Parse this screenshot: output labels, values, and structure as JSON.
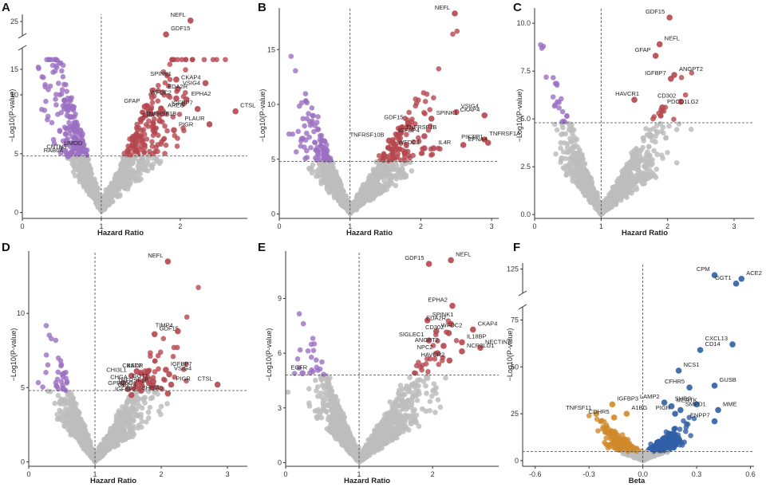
{
  "colors": {
    "background": "#bdbdbd",
    "significant_hr": "#b5474f",
    "protective": "#9b6fc2",
    "positive_beta": "#2f5fa6",
    "negative_beta": "#d08a2a"
  },
  "chart_data": [
    {
      "panel": "A",
      "type": "scatter",
      "xlabel": "Hazard Ratio",
      "ylabel": "−Log10(P-value)",
      "xlim": [
        0,
        2.85
      ],
      "ylim": [
        -0.5,
        26.5
      ],
      "x_ticks": [
        0,
        1,
        2
      ],
      "y_ticks": [
        0,
        5,
        10,
        15,
        25
      ],
      "y_axis_break": [
        14,
        22
      ],
      "ref_x": 1,
      "ref_y": 4.8,
      "labeled_points": [
        {
          "label": "NEFL",
          "x": 2.13,
          "y": 25.2,
          "group": "significant_hr"
        },
        {
          "label": "GDF15",
          "x": 1.82,
          "y": 22.3,
          "group": "significant_hr"
        },
        {
          "label": "SPINK1",
          "x": 1.95,
          "y": 11.3,
          "group": "significant_hr"
        },
        {
          "label": "VSIG4",
          "x": 1.97,
          "y": 10.5,
          "group": "significant_hr"
        },
        {
          "label": "CKAP4",
          "x": 2.32,
          "y": 11.0,
          "group": "significant_hr"
        },
        {
          "label": "EDA2R",
          "x": 1.78,
          "y": 10.2,
          "group": "significant_hr"
        },
        {
          "label": "WFDC2",
          "x": 1.95,
          "y": 9.7,
          "group": "significant_hr"
        },
        {
          "label": "EPHA2",
          "x": 2.08,
          "y": 9.6,
          "group": "significant_hr"
        },
        {
          "label": "GFAP",
          "x": 1.55,
          "y": 9.0,
          "group": "significant_hr"
        },
        {
          "label": "AREG",
          "x": 1.78,
          "y": 8.6,
          "group": "significant_hr"
        },
        {
          "label": "IGFBP7",
          "x": 2.22,
          "y": 8.8,
          "group": "significant_hr"
        },
        {
          "label": "TNFRSF1B",
          "x": 1.5,
          "y": 7.9,
          "group": "significant_hr"
        },
        {
          "label": "IL4R",
          "x": 1.74,
          "y": 7.8,
          "group": "significant_hr"
        },
        {
          "label": "PIGR",
          "x": 1.92,
          "y": 7.0,
          "group": "significant_hr"
        },
        {
          "label": "PLAUR",
          "x": 2.37,
          "y": 7.5,
          "group": "significant_hr"
        },
        {
          "label": "CTSL",
          "x": 2.7,
          "y": 8.6,
          "group": "significant_hr"
        },
        {
          "label": "RAB6A",
          "x": 0.58,
          "y": 4.8,
          "group": "protective"
        },
        {
          "label": "UMOD",
          "x": 0.7,
          "y": 5.4,
          "group": "protective"
        },
        {
          "label": "CNTN5",
          "x": 0.62,
          "y": 5.1,
          "group": "protective"
        }
      ]
    },
    {
      "panel": "B",
      "type": "scatter",
      "xlabel": "Hazard Ratio",
      "ylabel": "−Log10(P-value)",
      "xlim": [
        0,
        3.1
      ],
      "ylim": [
        -0.4,
        18.8
      ],
      "x_ticks": [
        0,
        1,
        2,
        3
      ],
      "y_ticks": [
        0,
        5,
        10,
        15
      ],
      "ref_x": 1,
      "ref_y": 4.8,
      "labeled_points": [
        {
          "label": "NEFL",
          "x": 2.48,
          "y": 18.3,
          "group": "significant_hr"
        },
        {
          "label": "VSIG4",
          "x": 2.5,
          "y": 9.3,
          "group": "significant_hr"
        },
        {
          "label": "CKAP4",
          "x": 2.9,
          "y": 9.0,
          "group": "significant_hr"
        },
        {
          "label": "SPINK1",
          "x": 2.15,
          "y": 8.7,
          "group": "significant_hr"
        },
        {
          "label": "GDF15",
          "x": 1.82,
          "y": 8.3,
          "group": "significant_hr"
        },
        {
          "label": "TNFRSF1B",
          "x": 1.72,
          "y": 7.4,
          "group": "significant_hr"
        },
        {
          "label": "IGFBP4",
          "x": 2.05,
          "y": 7.1,
          "group": "significant_hr"
        },
        {
          "label": "TNFRSF1A",
          "x": 2.9,
          "y": 6.8,
          "group": "significant_hr"
        },
        {
          "label": "TNFRSF10B",
          "x": 1.55,
          "y": 6.7,
          "group": "significant_hr"
        },
        {
          "label": "EFNA4",
          "x": 2.6,
          "y": 6.3,
          "group": "significant_hr"
        },
        {
          "label": "WFDC2",
          "x": 2.05,
          "y": 6.0,
          "group": "significant_hr"
        },
        {
          "label": "IL4R",
          "x": 2.18,
          "y": 6.0,
          "group": "significant_hr"
        },
        {
          "label": "PIK3IP1",
          "x": 2.95,
          "y": 6.5,
          "group": "significant_hr"
        }
      ]
    },
    {
      "panel": "C",
      "type": "scatter",
      "xlabel": "Hazard Ratio",
      "ylabel": "−Log10(P-value)",
      "xlim": [
        0,
        3.3
      ],
      "ylim": [
        -0.2,
        10.8
      ],
      "x_ticks": [
        0,
        1,
        2,
        3
      ],
      "y_ticks": [
        0.0,
        2.5,
        5.0,
        7.5,
        10.0
      ],
      "ref_x": 1,
      "ref_y": 4.8,
      "labeled_points": [
        {
          "label": "GDF15",
          "x": 2.03,
          "y": 10.3,
          "group": "significant_hr"
        },
        {
          "label": "NEFL",
          "x": 1.88,
          "y": 8.9,
          "group": "significant_hr"
        },
        {
          "label": "GFAP",
          "x": 1.82,
          "y": 8.3,
          "group": "significant_hr"
        },
        {
          "label": "ANGPT2",
          "x": 2.1,
          "y": 7.3,
          "group": "significant_hr"
        },
        {
          "label": "IGFBP7",
          "x": 2.05,
          "y": 7.1,
          "group": "significant_hr"
        },
        {
          "label": "HAVCR1",
          "x": 1.5,
          "y": 6.0,
          "group": "significant_hr"
        },
        {
          "label": "CD302",
          "x": 2.2,
          "y": 5.9,
          "group": "significant_hr"
        },
        {
          "label": "PDCD1LG2",
          "x": 1.92,
          "y": 5.6,
          "group": "significant_hr"
        }
      ]
    },
    {
      "panel": "D",
      "type": "scatter",
      "xlabel": "Hazard Ratio",
      "ylabel": "−Log10(P-value)",
      "xlim": [
        0,
        3.3
      ],
      "ylim": [
        -0.3,
        14.2
      ],
      "x_ticks": [
        0,
        1,
        2,
        3
      ],
      "y_ticks": [
        0,
        5,
        10
      ],
      "ref_x": 1,
      "ref_y": 4.8,
      "labeled_points": [
        {
          "label": "NEFL",
          "x": 2.1,
          "y": 13.5,
          "group": "significant_hr"
        },
        {
          "label": "GDF15",
          "x": 1.9,
          "y": 8.6,
          "group": "significant_hr"
        },
        {
          "label": "TIMP4",
          "x": 2.25,
          "y": 8.8,
          "group": "significant_hr"
        },
        {
          "label": "BST2",
          "x": 1.63,
          "y": 6.1,
          "group": "significant_hr"
        },
        {
          "label": "CXADR",
          "x": 1.8,
          "y": 6.1,
          "group": "significant_hr"
        },
        {
          "label": "IGFBP7",
          "x": 2.07,
          "y": 6.2,
          "group": "significant_hr"
        },
        {
          "label": "CHI3L1",
          "x": 1.55,
          "y": 5.8,
          "group": "significant_hr"
        },
        {
          "label": "VSIG4",
          "x": 2.12,
          "y": 5.9,
          "group": "significant_hr"
        },
        {
          "label": "GGT1",
          "x": 1.88,
          "y": 5.4,
          "group": "significant_hr"
        },
        {
          "label": "CHGA",
          "x": 1.42,
          "y": 5.3,
          "group": "significant_hr"
        },
        {
          "label": "TNFRSF1B",
          "x": 1.88,
          "y": 5.1,
          "group": "significant_hr"
        },
        {
          "label": "PIGR",
          "x": 2.15,
          "y": 5.2,
          "group": "significant_hr"
        },
        {
          "label": "CTSL",
          "x": 2.85,
          "y": 5.2,
          "group": "significant_hr"
        },
        {
          "label": "GPRC5C",
          "x": 1.5,
          "y": 4.9,
          "group": "significant_hr"
        },
        {
          "label": "CD274",
          "x": 1.7,
          "y": 4.8,
          "group": "significant_hr"
        },
        {
          "label": "IGFBP2",
          "x": 1.55,
          "y": 4.5,
          "group": "significant_hr"
        },
        {
          "label": "SHISA5",
          "x": 2.1,
          "y": 4.6,
          "group": "significant_hr"
        }
      ]
    },
    {
      "panel": "E",
      "type": "scatter",
      "xlabel": "Hazard Ratio",
      "ylabel": "−Log10(P-value)",
      "xlim": [
        0,
        2.9
      ],
      "ylim": [
        -0.2,
        11.6
      ],
      "x_ticks": [
        0,
        1,
        2
      ],
      "y_ticks": [
        0,
        3,
        6,
        9
      ],
      "ref_x": 1,
      "ref_y": 4.8,
      "labeled_points": [
        {
          "label": "GDF15",
          "x": 1.95,
          "y": 10.9,
          "group": "significant_hr"
        },
        {
          "label": "NEFL",
          "x": 2.25,
          "y": 11.1,
          "group": "significant_hr"
        },
        {
          "label": "EPHA2",
          "x": 2.27,
          "y": 8.6,
          "group": "significant_hr"
        },
        {
          "label": "SPINK1",
          "x": 1.93,
          "y": 7.8,
          "group": "significant_hr"
        },
        {
          "label": "EDA2R",
          "x": 2.25,
          "y": 7.6,
          "group": "significant_hr"
        },
        {
          "label": "WFDC2",
          "x": 2.05,
          "y": 7.2,
          "group": "significant_hr"
        },
        {
          "label": "CD302",
          "x": 2.22,
          "y": 7.1,
          "group": "significant_hr"
        },
        {
          "label": "CKAP4",
          "x": 2.55,
          "y": 7.3,
          "group": "significant_hr"
        },
        {
          "label": "SIGLEC1",
          "x": 1.95,
          "y": 6.7,
          "group": "significant_hr"
        },
        {
          "label": "IL18BP",
          "x": 2.4,
          "y": 6.6,
          "group": "significant_hr"
        },
        {
          "label": "ANGPT2",
          "x": 2.15,
          "y": 6.4,
          "group": "significant_hr"
        },
        {
          "label": "NECTIN2",
          "x": 2.65,
          "y": 6.3,
          "group": "significant_hr"
        },
        {
          "label": "NPC2",
          "x": 2.07,
          "y": 6.0,
          "group": "significant_hr"
        },
        {
          "label": "NCR3LG1",
          "x": 2.4,
          "y": 6.1,
          "group": "significant_hr"
        },
        {
          "label": "HAVCR2",
          "x": 2.23,
          "y": 5.6,
          "group": "significant_hr"
        },
        {
          "label": "EGFR",
          "x": 0.23,
          "y": 4.9,
          "group": "protective"
        }
      ]
    },
    {
      "panel": "F",
      "type": "scatter",
      "xlabel": "Beta",
      "ylabel": "−Log10(P-value)",
      "xlim": [
        -0.67,
        0.62
      ],
      "ylim": [
        -3,
        130
      ],
      "x_ticks": [
        -0.6,
        -0.3,
        0.0,
        0.3,
        0.6
      ],
      "y_ticks": [
        0,
        25,
        50,
        75,
        125
      ],
      "y_axis_break": [
        82,
        105
      ],
      "ref_x": 0,
      "ref_y": 4.8,
      "labeled_points": [
        {
          "label": "CPM",
          "x": 0.4,
          "y": 120,
          "group": "positive_beta"
        },
        {
          "label": "ACE2",
          "x": 0.55,
          "y": 117,
          "group": "positive_beta"
        },
        {
          "label": "GGT1",
          "x": 0.52,
          "y": 113,
          "group": "positive_beta"
        },
        {
          "label": "CD14",
          "x": 0.32,
          "y": 59,
          "group": "positive_beta"
        },
        {
          "label": "CXCL13",
          "x": 0.5,
          "y": 62,
          "group": "positive_beta"
        },
        {
          "label": "NCS1",
          "x": 0.2,
          "y": 48,
          "group": "positive_beta"
        },
        {
          "label": "CFHR5",
          "x": 0.26,
          "y": 39,
          "group": "positive_beta"
        },
        {
          "label": "GUSB",
          "x": 0.4,
          "y": 40,
          "group": "positive_beta"
        },
        {
          "label": "LAMP2",
          "x": 0.12,
          "y": 31,
          "group": "positive_beta"
        },
        {
          "label": "MERTK",
          "x": 0.16,
          "y": 29,
          "group": "positive_beta"
        },
        {
          "label": "SHBG",
          "x": 0.3,
          "y": 30,
          "group": "positive_beta"
        },
        {
          "label": "SMPD1",
          "x": 0.21,
          "y": 27,
          "group": "positive_beta"
        },
        {
          "label": "PIGR",
          "x": 0.18,
          "y": 25,
          "group": "positive_beta"
        },
        {
          "label": "MME",
          "x": 0.42,
          "y": 27,
          "group": "positive_beta"
        },
        {
          "label": "ENPP7",
          "x": 0.4,
          "y": 21,
          "group": "positive_beta"
        },
        {
          "label": "IGFBP3",
          "x": -0.17,
          "y": 30,
          "group": "negative_beta"
        },
        {
          "label": "TNFSF11",
          "x": -0.26,
          "y": 25,
          "group": "negative_beta"
        },
        {
          "label": "A1BG",
          "x": -0.09,
          "y": 25,
          "group": "negative_beta"
        },
        {
          "label": "CDHR5",
          "x": -0.16,
          "y": 23,
          "group": "negative_beta"
        }
      ]
    }
  ]
}
